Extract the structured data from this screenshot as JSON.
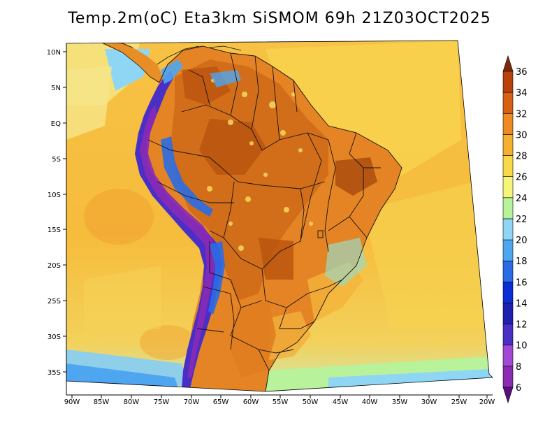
{
  "title": "Temp.2m(oC) Eta3km SiSMOM 69h 21Z03OCT2025",
  "variable": "Temp.2m",
  "units": "oC",
  "model": "Eta3km",
  "lat_labels": [
    "10N",
    "5N",
    "EQ",
    "5S",
    "10S",
    "15S",
    "20S",
    "25S",
    "30S",
    "35S"
  ],
  "lon_labels": [
    "90W",
    "85W",
    "80W",
    "75W",
    "70W",
    "65W",
    "60W",
    "55W",
    "50W",
    "45W",
    "40W",
    "35W",
    "30W",
    "25W",
    "20W"
  ],
  "lat_range": [
    -38,
    11
  ],
  "lon_range": [
    -91,
    -19
  ],
  "colorbar": {
    "levels": [
      "6",
      "8",
      "10",
      "12",
      "14",
      "16",
      "18",
      "20",
      "22",
      "24",
      "26",
      "28",
      "30",
      "32",
      "34",
      "36"
    ],
    "colors": [
      "#5a0f7d",
      "#8a2bb5",
      "#a347d6",
      "#4a2fc7",
      "#1f1fb0",
      "#0b2fd6",
      "#2a6be6",
      "#4fa6f0",
      "#8fd6f5",
      "#b8f29a",
      "#f5f57a",
      "#f7d94a",
      "#f5b02d",
      "#ee8a22",
      "#d86012",
      "#b8420a",
      "#7a2a0a"
    ]
  },
  "colors": {
    "ocean_warm": "#f7c446",
    "ocean_cool": "#f5d85a",
    "land_hot": "#e07a1f",
    "land_very_hot": "#b8550f",
    "andes_cold": "#3a2fb0",
    "border": "#111111"
  }
}
